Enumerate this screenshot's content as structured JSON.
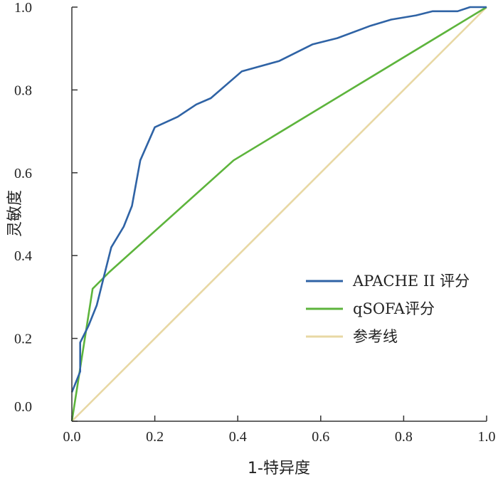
{
  "chart_data": {
    "type": "line",
    "xlabel": "1-特异度",
    "ylabel": "灵敏度",
    "xlim": [
      0,
      1
    ],
    "ylim": [
      0,
      1
    ],
    "x_ticks": [
      {
        "value": 0,
        "label": "0.0"
      },
      {
        "value": 0.2,
        "label": "0.2"
      },
      {
        "value": 0.4,
        "label": "0.4"
      },
      {
        "value": 0.6,
        "label": "0.6"
      },
      {
        "value": 0.8,
        "label": "0.8"
      },
      {
        "value": 1,
        "label": "1.0"
      }
    ],
    "y_ticks": [
      {
        "value": 0,
        "label": "0.0"
      },
      {
        "value": 0.2,
        "label": "0.2"
      },
      {
        "value": 0.4,
        "label": "0.4"
      },
      {
        "value": 0.6,
        "label": "0.6"
      },
      {
        "value": 0.8,
        "label": "0.8"
      },
      {
        "value": 1,
        "label": "1.0"
      }
    ],
    "grid": false,
    "legend_position": "bottom-right",
    "series": [
      {
        "name": "APACHE II 评分",
        "color": "#2f63a5",
        "points": [
          [
            0.0,
            0.07
          ],
          [
            0.02,
            0.12
          ],
          [
            0.02,
            0.19
          ],
          [
            0.04,
            0.23
          ],
          [
            0.06,
            0.28
          ],
          [
            0.07,
            0.32
          ],
          [
            0.08,
            0.36
          ],
          [
            0.095,
            0.42
          ],
          [
            0.125,
            0.47
          ],
          [
            0.145,
            0.52
          ],
          [
            0.165,
            0.63
          ],
          [
            0.2,
            0.71
          ],
          [
            0.255,
            0.735
          ],
          [
            0.3,
            0.765
          ],
          [
            0.335,
            0.78
          ],
          [
            0.41,
            0.845
          ],
          [
            0.5,
            0.87
          ],
          [
            0.58,
            0.91
          ],
          [
            0.64,
            0.925
          ],
          [
            0.72,
            0.955
          ],
          [
            0.77,
            0.97
          ],
          [
            0.83,
            0.98
          ],
          [
            0.87,
            0.99
          ],
          [
            0.93,
            0.99
          ],
          [
            0.96,
            1.0
          ],
          [
            1.0,
            1.0
          ]
        ]
      },
      {
        "name": "qSOFA评分",
        "color": "#5db43c",
        "points": [
          [
            0.0,
            0.0
          ],
          [
            0.05,
            0.32
          ],
          [
            0.09,
            0.36
          ],
          [
            0.39,
            0.63
          ],
          [
            1.0,
            1.0
          ]
        ]
      },
      {
        "name": "参考线",
        "color": "#e8d8a4",
        "points": [
          [
            0.0,
            0.0
          ],
          [
            1.0,
            1.0
          ]
        ]
      }
    ]
  }
}
